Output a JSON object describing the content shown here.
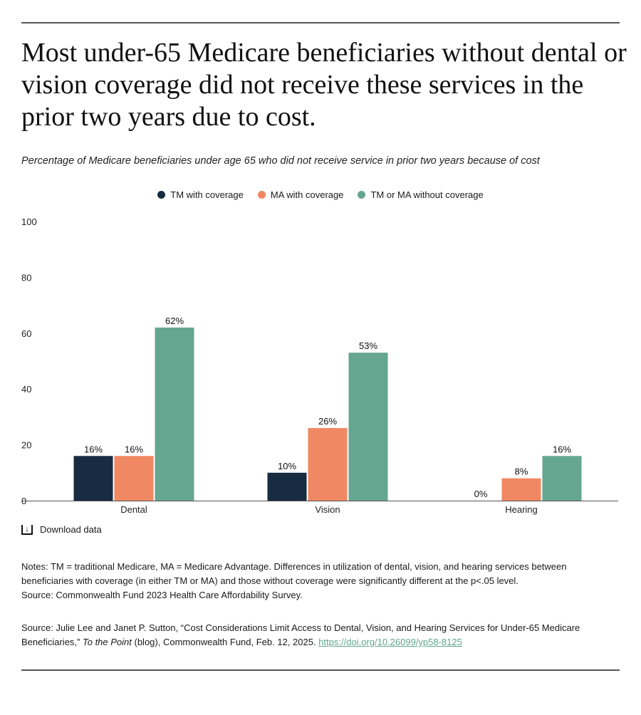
{
  "title": "Most under-65 Medicare beneficiaries without dental or vision coverage did not receive these services in the prior two years due to cost.",
  "subtitle": "Percentage of Medicare beneficiaries under age 65 who did not receive service in prior two years because of cost",
  "download_label": "Download data",
  "notes": "Notes: TM = traditional Medicare, MA = Medicare Advantage. Differences in utilization of dental, vision, and hearing services between beneficiaries with coverage (in either TM or MA) and those without coverage were significantly different at the p<.05 level.",
  "notes_source": "Source: Commonwealth Fund 2023 Health Care Affordability Survey.",
  "citation": {
    "prefix": "Source: Julie Lee and Janet P. Sutton, “Cost Considerations Limit Access to Dental, Vision, and Hearing Services for Under-65 Medicare Beneficiaries,” ",
    "italic": "To the Point",
    "suffix": " (blog), Commonwealth Fund, Feb. 12, 2025. ",
    "link": "https://doi.org/10.26099/yp58-8125"
  },
  "chart_data": {
    "type": "bar",
    "categories": [
      "Dental",
      "Vision",
      "Hearing"
    ],
    "series": [
      {
        "name": "TM with coverage",
        "color": "#172b41",
        "values": [
          16,
          10,
          0
        ],
        "labels": [
          "16%",
          "10%",
          "0%"
        ]
      },
      {
        "name": "MA with coverage",
        "color": "#f08863",
        "values": [
          16,
          26,
          8
        ],
        "labels": [
          "16%",
          "26%",
          "8%"
        ]
      },
      {
        "name": "TM or MA without coverage",
        "color": "#65a690",
        "values": [
          62,
          53,
          16
        ],
        "labels": [
          "62%",
          "53%",
          "16%"
        ]
      }
    ],
    "yticks": [
      "0",
      "20",
      "40",
      "60",
      "80",
      "100"
    ],
    "ylim": [
      0,
      100
    ],
    "grid": false,
    "legend": "top-center"
  }
}
